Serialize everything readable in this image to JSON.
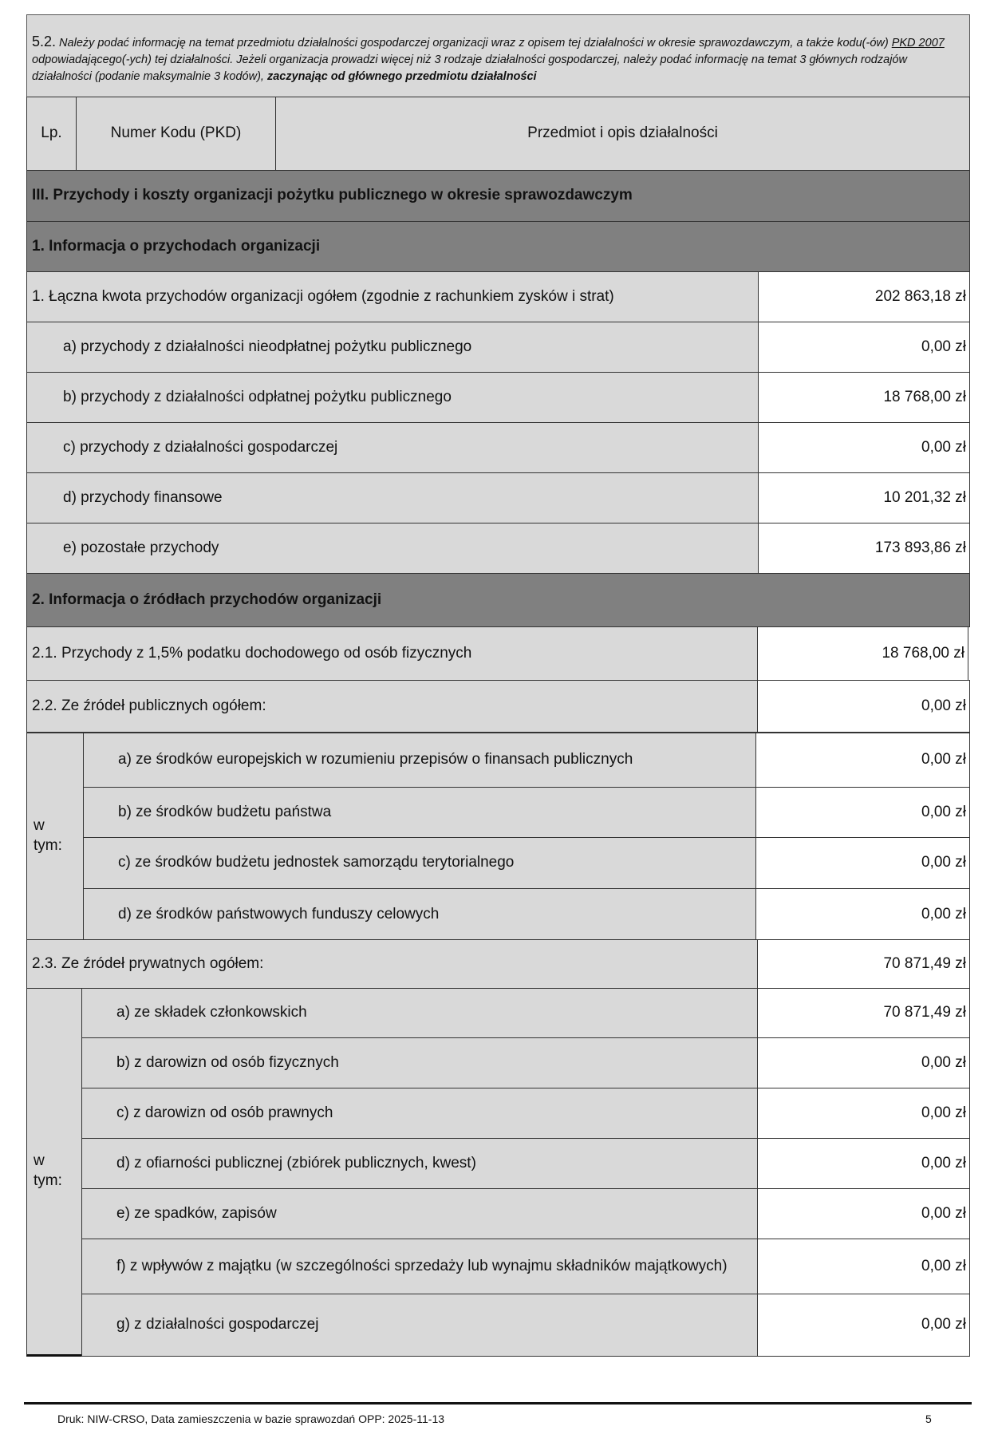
{
  "intro": {
    "number": "5.2.",
    "text_part1": " Należy podać informację na temat przedmiotu działalności gospodarczej organizacji wraz z opisem tej działalności w okresie sprawozdawczym, a także kodu(-ów) ",
    "pkd_link": "PKD 2007",
    "text_part2": " odpowiadającego(-ych) tej działalności. Jeżeli organizacja prowadzi więcej niż 3 rodzaje działalności gospodarczej, należy podać informację na temat 3 głównych rodzajów działalności (podanie maksymalnie 3 kodów), ",
    "text_bold": "zaczynając od głównego przedmiotu działalności"
  },
  "pkd_table": {
    "col_lp": "Lp.",
    "col_code": "Numer Kodu (PKD)",
    "col_desc": "Przedmiot i opis działalności"
  },
  "section3_title": "III. Przychody i koszty organizacji pożytku publicznego w okresie sprawozdawczym",
  "income": {
    "title": "1. Informacja o przychodach organizacji",
    "rows": [
      {
        "label": "1. Łączna kwota przychodów organizacji ogółem (zgodnie z rachunkiem zysków i strat)",
        "value": "202 863,18 zł"
      },
      {
        "label": "a) przychody z działalności nieodpłatnej pożytku publicznego",
        "value": "0,00 zł"
      },
      {
        "label": "b) przychody z działalności odpłatnej pożytku publicznego",
        "value": "18 768,00 zł"
      },
      {
        "label": "c) przychody z działalności gospodarczej",
        "value": "0,00 zł"
      },
      {
        "label": "d) przychody finansowe",
        "value": "10 201,32 zł"
      },
      {
        "label": "e) pozostałe przychody",
        "value": "173 893,86 zł"
      }
    ]
  },
  "sources": {
    "title": "2. Informacja o źródłach przychodów organizacji",
    "tax": {
      "label": "2.1. Przychody z 1,5% podatku dochodowego od osób fizycznych",
      "value": "18 768,00 zł"
    },
    "public": {
      "label": "2.2. Ze źródeł publicznych ogółem:",
      "value": "0,00 zł"
    },
    "public_of_which": "w tym:",
    "public_rows": [
      {
        "label": "a) ze środków europejskich w rozumieniu przepisów  o finansach publicznych",
        "value": "0,00 zł"
      },
      {
        "label": "b) ze środków budżetu państwa",
        "value": "0,00 zł"
      },
      {
        "label": "c) ze środków budżetu jednostek samorządu terytorialnego",
        "value": "0,00 zł"
      },
      {
        "label": "d) ze środków państwowych funduszy celowych",
        "value": "0,00 zł"
      }
    ],
    "private": {
      "label": "2.3. Ze źródeł prywatnych ogółem:",
      "value": "70 871,49 zł"
    },
    "private_of_which": "w tym:",
    "private_rows": [
      {
        "label": "a) ze składek członkowskich",
        "value": "70 871,49 zł"
      },
      {
        "label": "b) z darowizn od osób fizycznych",
        "value": "0,00 zł"
      },
      {
        "label": "c) z darowizn od osób prawnych",
        "value": "0,00 zł"
      },
      {
        "label": "d) z ofiarności publicznej (zbiórek publicznych, kwest)",
        "value": "0,00 zł"
      },
      {
        "label": "e) ze spadków, zapisów",
        "value": "0,00 zł"
      },
      {
        "label": "f) z wpływów z majątku (w szczególności sprzedaży lub wynajmu składników majątkowych)",
        "value": "0,00 zł"
      },
      {
        "label": "g) z działalności gospodarczej",
        "value": "0,00 zł"
      }
    ]
  },
  "footer": {
    "print_info": "Druk: NIW-CRSO, Data zamieszczenia w bazie sprawozdań OPP:  2025-11-13",
    "page_number": "5"
  },
  "colors": {
    "light_gray": "#d9d9d9",
    "dark_gray": "#808080"
  }
}
